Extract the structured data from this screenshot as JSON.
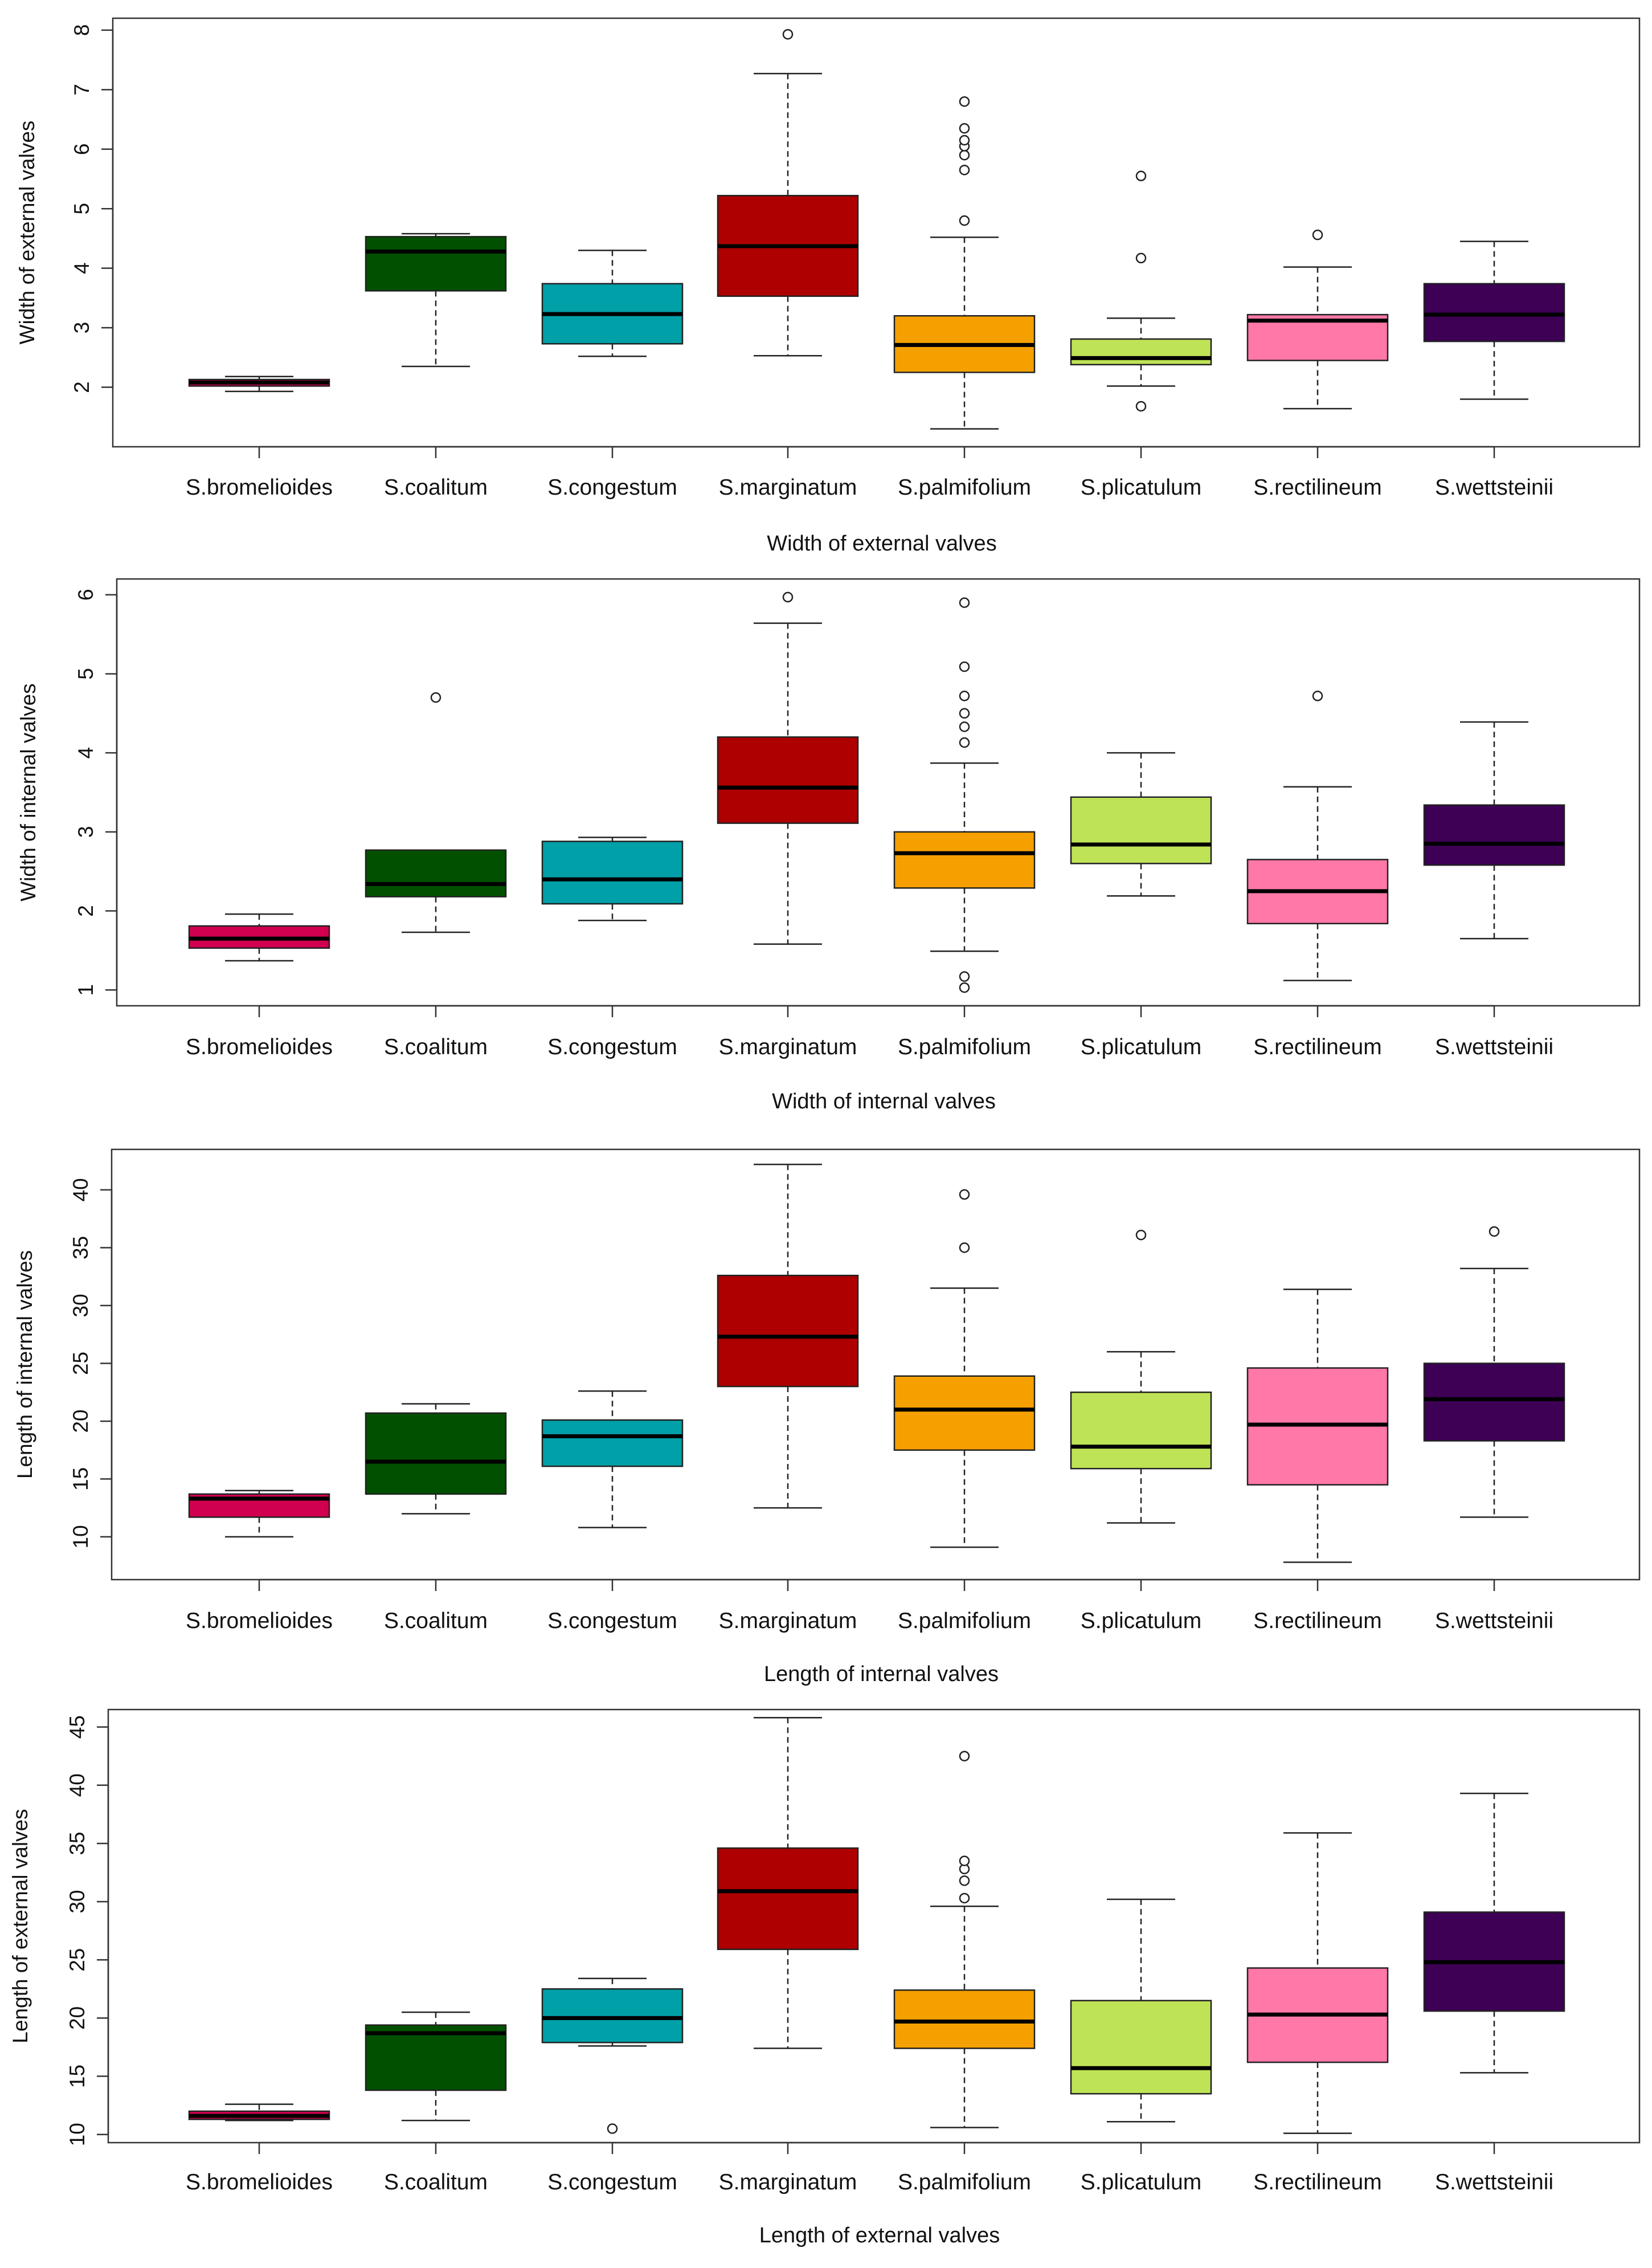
{
  "chart_data": [
    {
      "type": "boxplot",
      "title": "Width of external valves",
      "ylabel": "Width of external valves",
      "yticks": [
        2,
        3,
        4,
        5,
        6,
        7,
        8
      ],
      "ylim": [
        1.0,
        8.2
      ],
      "categories": [
        "S.bromelioides",
        "S.coalitum",
        "S.congestum",
        "S.marginatum",
        "S.palmifolium",
        "S.plicatulum",
        "S.rectilineum",
        "S.wettsteinii"
      ],
      "colors": [
        "#D0004E",
        "#005000",
        "#00A0A8",
        "#AE0000",
        "#F5A000",
        "#BEE356",
        "#FF78A8",
        "#3D0055"
      ],
      "boxes": [
        {
          "min": 1.93,
          "q1": 2.02,
          "median": 2.08,
          "q3": 2.13,
          "max": 2.18,
          "outliers": []
        },
        {
          "min": 2.35,
          "q1": 3.62,
          "median": 4.28,
          "q3": 4.53,
          "max": 4.58,
          "outliers": []
        },
        {
          "min": 2.52,
          "q1": 2.73,
          "median": 3.23,
          "q3": 3.74,
          "max": 4.3,
          "outliers": []
        },
        {
          "min": 2.53,
          "q1": 3.53,
          "median": 4.37,
          "q3": 5.22,
          "max": 7.27,
          "outliers": [
            7.93
          ]
        },
        {
          "min": 1.3,
          "q1": 2.25,
          "median": 2.71,
          "q3": 3.2,
          "max": 4.52,
          "outliers": [
            4.8,
            5.65,
            5.9,
            6.05,
            6.15,
            6.35,
            6.8
          ]
        },
        {
          "min": 2.02,
          "q1": 2.38,
          "median": 2.49,
          "q3": 2.81,
          "max": 3.16,
          "outliers": [
            1.68,
            4.17,
            5.55
          ]
        },
        {
          "min": 1.64,
          "q1": 2.45,
          "median": 3.12,
          "q3": 3.22,
          "max": 4.02,
          "outliers": [
            4.56
          ]
        },
        {
          "min": 1.8,
          "q1": 2.77,
          "median": 3.22,
          "q3": 3.74,
          "max": 4.45,
          "outliers": []
        }
      ]
    },
    {
      "type": "boxplot",
      "title": "Width of internal valves",
      "ylabel": "Width of internal valves",
      "yticks": [
        1,
        2,
        3,
        4,
        5,
        6
      ],
      "ylim": [
        0.8,
        6.2
      ],
      "categories": [
        "S.bromelioides",
        "S.coalitum",
        "S.congestum",
        "S.marginatum",
        "S.palmifolium",
        "S.plicatulum",
        "S.rectilineum",
        "S.wettsteinii"
      ],
      "colors": [
        "#D0004E",
        "#005000",
        "#00A0A8",
        "#AE0000",
        "#F5A000",
        "#BEE356",
        "#FF78A8",
        "#3D0055"
      ],
      "boxes": [
        {
          "min": 1.37,
          "q1": 1.53,
          "median": 1.65,
          "q3": 1.81,
          "max": 1.96,
          "outliers": []
        },
        {
          "min": 1.73,
          "q1": 2.18,
          "median": 2.34,
          "q3": 2.77,
          "max": 2.77,
          "outliers": [
            4.7
          ]
        },
        {
          "min": 1.88,
          "q1": 2.09,
          "median": 2.4,
          "q3": 2.88,
          "max": 2.93,
          "outliers": []
        },
        {
          "min": 1.58,
          "q1": 3.11,
          "median": 3.56,
          "q3": 4.2,
          "max": 5.64,
          "outliers": [
            5.97
          ]
        },
        {
          "min": 1.49,
          "q1": 2.29,
          "median": 2.73,
          "q3": 3.0,
          "max": 3.87,
          "outliers": [
            1.03,
            1.17,
            4.13,
            4.33,
            4.5,
            4.72,
            5.09,
            5.9
          ]
        },
        {
          "min": 2.19,
          "q1": 2.6,
          "median": 2.84,
          "q3": 3.44,
          "max": 4.0,
          "outliers": []
        },
        {
          "min": 1.12,
          "q1": 1.84,
          "median": 2.25,
          "q3": 2.65,
          "max": 3.57,
          "outliers": [
            4.72
          ]
        },
        {
          "min": 1.65,
          "q1": 2.58,
          "median": 2.85,
          "q3": 3.34,
          "max": 4.39,
          "outliers": []
        }
      ]
    },
    {
      "type": "boxplot",
      "title": "Length of internal valves",
      "ylabel": "Length of internal valves",
      "yticks": [
        10,
        15,
        20,
        25,
        30,
        35,
        40
      ],
      "ylim": [
        6.3,
        43.5
      ],
      "categories": [
        "S.bromelioides",
        "S.coalitum",
        "S.congestum",
        "S.marginatum",
        "S.palmifolium",
        "S.plicatulum",
        "S.rectilineum",
        "S.wettsteinii"
      ],
      "colors": [
        "#D0004E",
        "#005000",
        "#00A0A8",
        "#AE0000",
        "#F5A000",
        "#BEE356",
        "#FF78A8",
        "#3D0055"
      ],
      "boxes": [
        {
          "min": 10.0,
          "q1": 11.7,
          "median": 13.3,
          "q3": 13.7,
          "max": 14.0,
          "outliers": []
        },
        {
          "min": 12.0,
          "q1": 13.7,
          "median": 16.5,
          "q3": 20.7,
          "max": 21.5,
          "outliers": []
        },
        {
          "min": 10.8,
          "q1": 16.1,
          "median": 18.7,
          "q3": 20.1,
          "max": 22.6,
          "outliers": []
        },
        {
          "min": 12.5,
          "q1": 23.0,
          "median": 27.3,
          "q3": 32.6,
          "max": 42.2,
          "outliers": []
        },
        {
          "min": 9.1,
          "q1": 17.5,
          "median": 21.0,
          "q3": 23.9,
          "max": 31.5,
          "outliers": [
            35.0,
            39.6
          ]
        },
        {
          "min": 11.2,
          "q1": 15.9,
          "median": 17.8,
          "q3": 22.5,
          "max": 26.0,
          "outliers": [
            36.1
          ]
        },
        {
          "min": 7.8,
          "q1": 14.5,
          "median": 19.7,
          "q3": 24.6,
          "max": 31.4,
          "outliers": []
        },
        {
          "min": 11.7,
          "q1": 18.3,
          "median": 21.9,
          "q3": 25.0,
          "max": 33.2,
          "outliers": [
            36.4
          ]
        }
      ]
    },
    {
      "type": "boxplot",
      "title": "Length of external valves",
      "ylabel": "Length of external valves",
      "yticks": [
        10,
        15,
        20,
        25,
        30,
        35,
        40,
        45
      ],
      "ylim": [
        9.3,
        46.5
      ],
      "categories": [
        "S.bromelioides",
        "S.coalitum",
        "S.congestum",
        "S.marginatum",
        "S.palmifolium",
        "S.plicatulum",
        "S.rectilineum",
        "S.wettsteinii"
      ],
      "colors": [
        "#D0004E",
        "#005000",
        "#00A0A8",
        "#AE0000",
        "#F5A000",
        "#BEE356",
        "#FF78A8",
        "#3D0055"
      ],
      "boxes": [
        {
          "min": 11.2,
          "q1": 11.3,
          "median": 11.6,
          "q3": 12.0,
          "max": 12.6,
          "outliers": []
        },
        {
          "min": 11.2,
          "q1": 13.8,
          "median": 18.7,
          "q3": 19.4,
          "max": 20.5,
          "outliers": []
        },
        {
          "min": 17.6,
          "q1": 17.9,
          "median": 20.0,
          "q3": 22.5,
          "max": 23.4,
          "outliers": [
            10.5
          ]
        },
        {
          "min": 17.4,
          "q1": 25.9,
          "median": 30.9,
          "q3": 34.6,
          "max": 45.8,
          "outliers": []
        },
        {
          "min": 10.6,
          "q1": 17.4,
          "median": 19.7,
          "q3": 22.4,
          "max": 29.6,
          "outliers": [
            30.3,
            31.8,
            32.8,
            33.5,
            42.5
          ]
        },
        {
          "min": 11.1,
          "q1": 13.5,
          "median": 15.7,
          "q3": 21.5,
          "max": 30.2,
          "outliers": []
        },
        {
          "min": 10.1,
          "q1": 16.2,
          "median": 20.3,
          "q3": 24.3,
          "max": 35.9,
          "outliers": []
        },
        {
          "min": 15.3,
          "q1": 20.6,
          "median": 24.8,
          "q3": 29.1,
          "max": 39.3,
          "outliers": []
        }
      ]
    }
  ]
}
